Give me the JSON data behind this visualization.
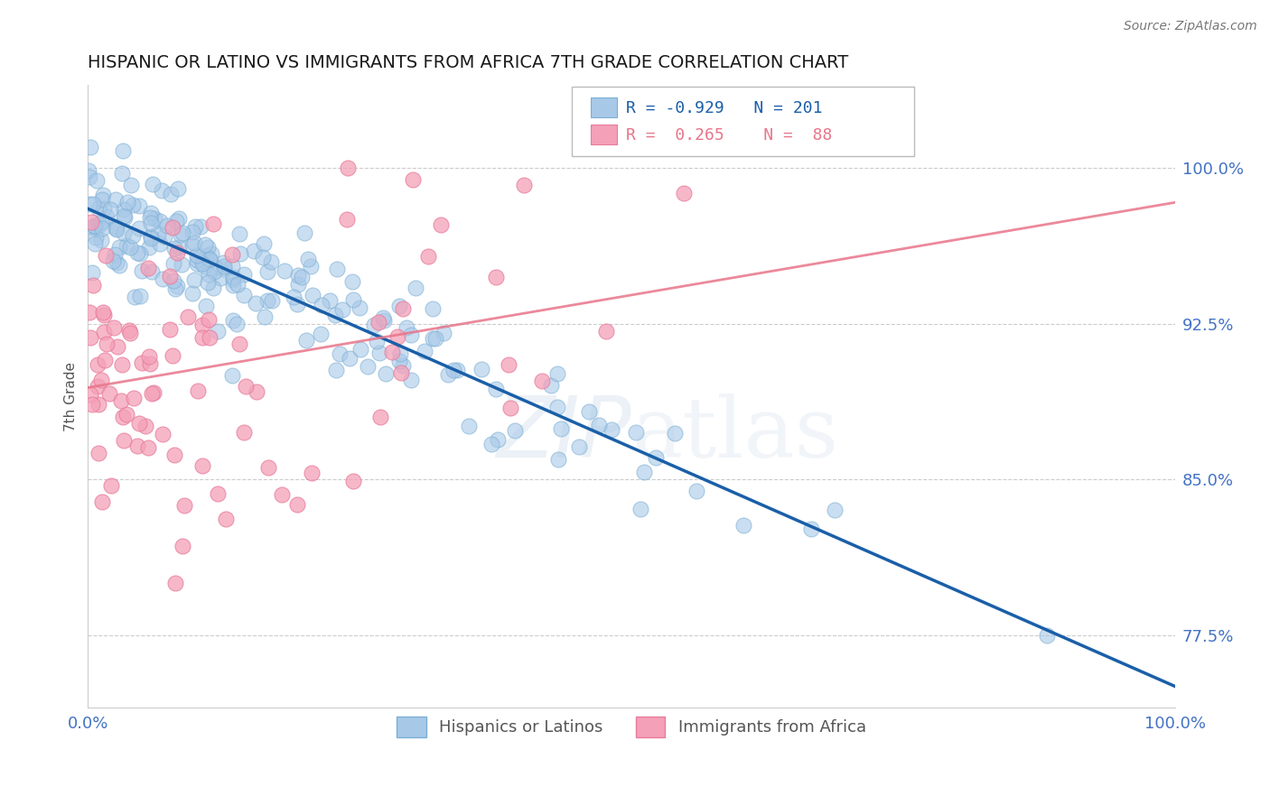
{
  "title": "HISPANIC OR LATINO VS IMMIGRANTS FROM AFRICA 7TH GRADE CORRELATION CHART",
  "source_text": "Source: ZipAtlas.com",
  "ylabel": "7th Grade",
  "xlim": [
    0.0,
    1.0
  ],
  "ylim": [
    0.74,
    1.04
  ],
  "yticks": [
    0.775,
    0.85,
    0.925,
    1.0
  ],
  "ytick_labels": [
    "77.5%",
    "85.0%",
    "92.5%",
    "100.0%"
  ],
  "xticks": [
    0.0,
    1.0
  ],
  "xtick_labels": [
    "0.0%",
    "100.0%"
  ],
  "blue_R": -0.929,
  "blue_N": 201,
  "pink_R": 0.265,
  "pink_N": 88,
  "blue_color": "#a8c8e8",
  "pink_color": "#f4a0b8",
  "blue_edge_color": "#7bafd4",
  "pink_edge_color": "#e87b9a",
  "blue_line_color": "#1a5fa8",
  "pink_line_color": "#e8758a",
  "legend_blue_label": "Hispanics or Latinos",
  "legend_pink_label": "Immigrants from Africa",
  "watermark_color": "#c8d8e8",
  "background_color": "#ffffff",
  "grid_color": "#cccccc",
  "tick_color": "#4472c4",
  "ylabel_color": "#555555",
  "title_color": "#1a1a1a"
}
